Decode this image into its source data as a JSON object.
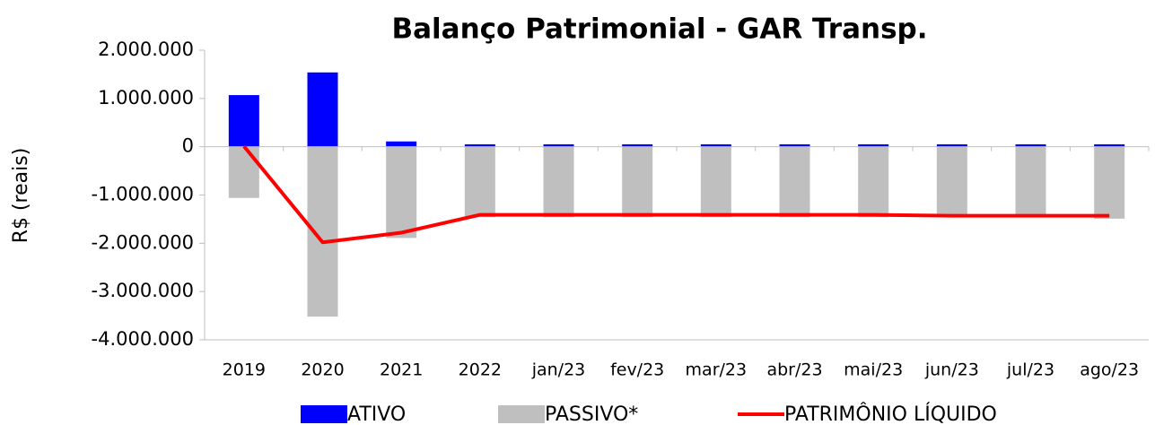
{
  "chart_data": {
    "type": "bar_line",
    "title": "Balanço Patrimonial - GAR Transp.",
    "y_axis_label": "R$ (reais)",
    "categories": [
      "2019",
      "2020",
      "2021",
      "2022",
      "jan/23",
      "fev/23",
      "mar/23",
      "abr/23",
      "mai/23",
      "jun/23",
      "jul/23",
      "ago/23"
    ],
    "series": [
      {
        "name": "ATIVO",
        "type": "bar",
        "color": "#0000ff",
        "values": [
          1070000,
          1540000,
          110000,
          50000,
          50000,
          50000,
          50000,
          50000,
          50000,
          50000,
          50000,
          50000
        ]
      },
      {
        "name": "PASSIVO*",
        "type": "bar",
        "color": "#bfbfbf",
        "values": [
          -1060000,
          -3520000,
          -1890000,
          -1460000,
          -1460000,
          -1460000,
          -1460000,
          -1460000,
          -1460000,
          -1460000,
          -1460000,
          -1490000
        ]
      },
      {
        "name": "PATRIMÔNIO LÍQUIDO",
        "type": "line",
        "color": "#ff0000",
        "values": [
          10000,
          -1980000,
          -1780000,
          -1410000,
          -1410000,
          -1410000,
          -1410000,
          -1410000,
          -1410000,
          -1430000,
          -1430000,
          -1430000
        ]
      }
    ],
    "ylim": [
      -4000000,
      2000000
    ],
    "yticks": [
      {
        "value": -4000000,
        "label": "-4.000.000"
      },
      {
        "value": -3000000,
        "label": "-3.000.000"
      },
      {
        "value": -2000000,
        "label": "-2.000.000"
      },
      {
        "value": -1000000,
        "label": "-1.000.000"
      },
      0,
      {
        "value": 1000000,
        "label": "1.000.000"
      },
      {
        "value": 2000000,
        "label": "2.000.000"
      }
    ],
    "negative_tick_color": "#ff0000",
    "legend": "bottom"
  }
}
